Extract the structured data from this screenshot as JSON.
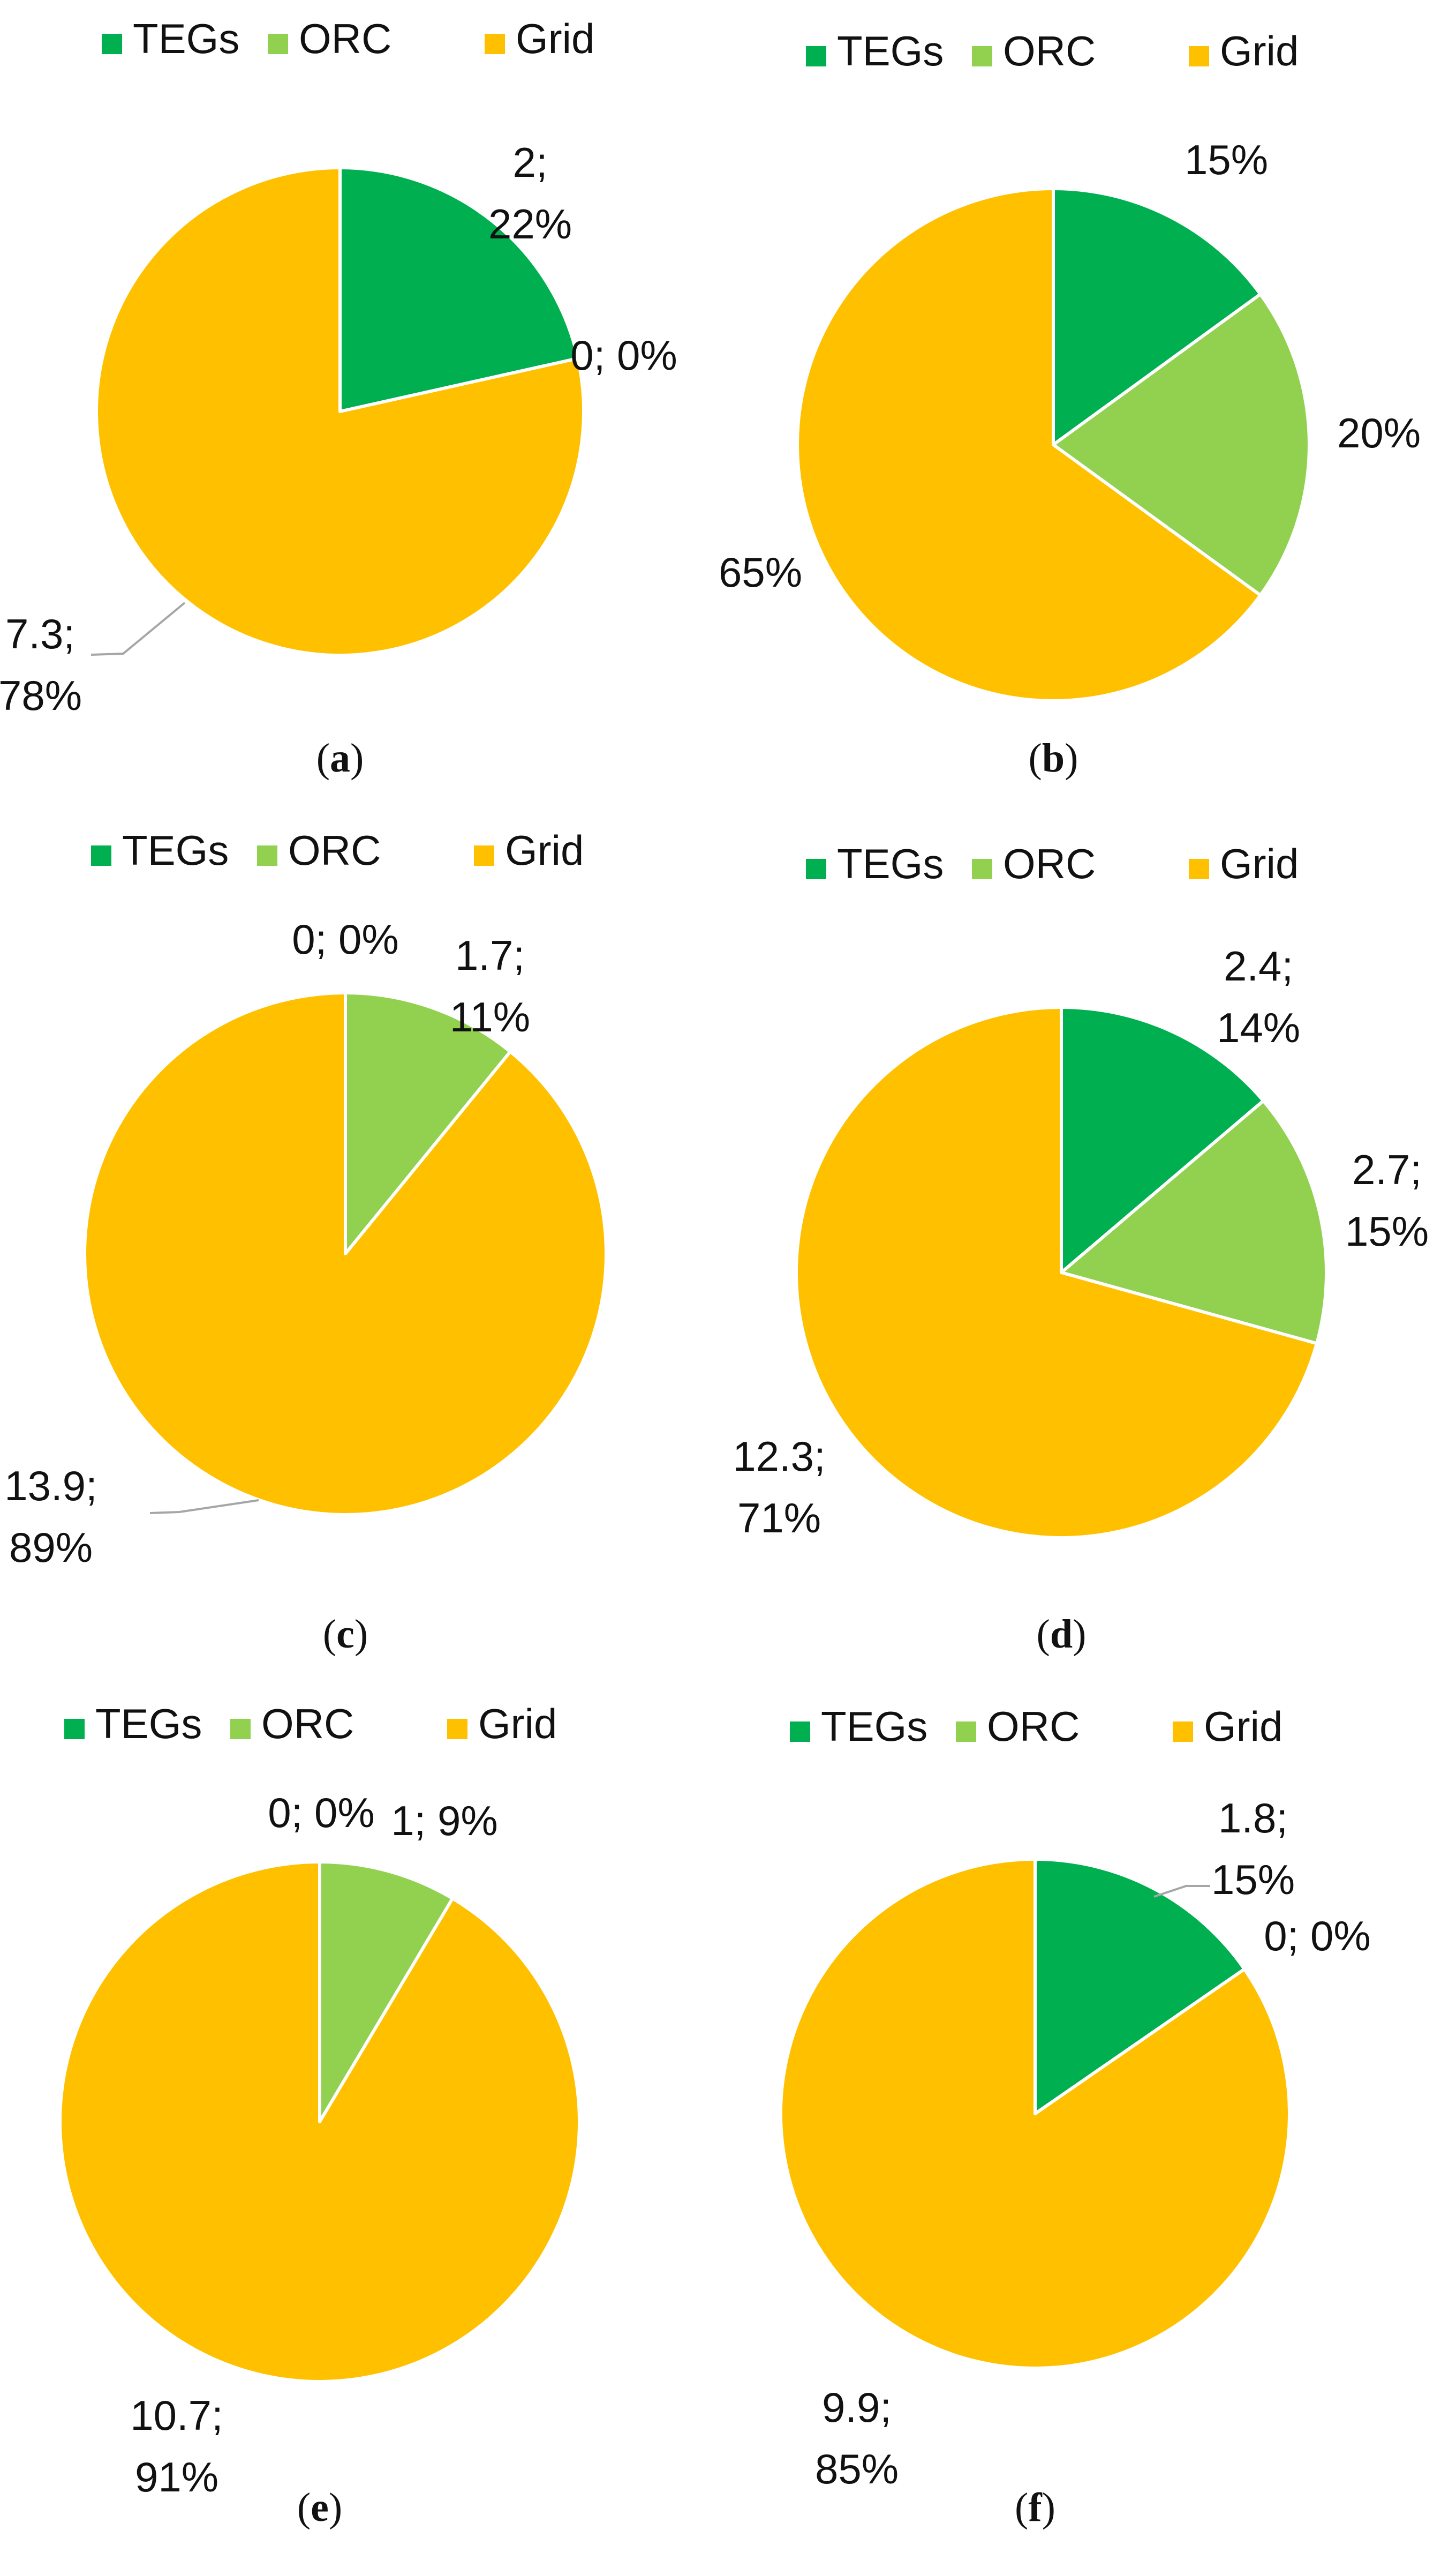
{
  "legend": [
    {
      "name": "TEGs",
      "color": "#00b050"
    },
    {
      "name": "ORC",
      "color": "#92d050"
    },
    {
      "name": "Grid",
      "color": "#ffc000"
    }
  ],
  "chart_data": [
    {
      "type": "pie",
      "caption": "a",
      "slices": [
        {
          "name": "TEGs",
          "value": 2,
          "percent": 22,
          "label": [
            "2;",
            "22%"
          ]
        },
        {
          "name": "ORC",
          "value": 0,
          "percent": 0,
          "label": [
            "0; 0%"
          ]
        },
        {
          "name": "Grid",
          "value": 7.3,
          "percent": 78,
          "label": [
            "7.3;",
            "78%"
          ]
        }
      ]
    },
    {
      "type": "pie",
      "caption": "b",
      "slices": [
        {
          "name": "TEGs",
          "value": 15,
          "percent": 15,
          "label": [
            "15%"
          ]
        },
        {
          "name": "ORC",
          "value": 20,
          "percent": 20,
          "label": [
            "20%"
          ]
        },
        {
          "name": "Grid",
          "value": 65,
          "percent": 65,
          "label": [
            "65%"
          ]
        }
      ]
    },
    {
      "type": "pie",
      "caption": "c",
      "slices": [
        {
          "name": "TEGs",
          "value": 0,
          "percent": 0,
          "label": [
            "0; 0%"
          ]
        },
        {
          "name": "ORC",
          "value": 1.7,
          "percent": 11,
          "label": [
            "1.7;",
            "11%"
          ]
        },
        {
          "name": "Grid",
          "value": 13.9,
          "percent": 89,
          "label": [
            "13.9;",
            "89%"
          ]
        }
      ]
    },
    {
      "type": "pie",
      "caption": "d",
      "slices": [
        {
          "name": "TEGs",
          "value": 2.4,
          "percent": 14,
          "label": [
            "2.4;",
            "14%"
          ]
        },
        {
          "name": "ORC",
          "value": 2.7,
          "percent": 15,
          "label": [
            "2.7;",
            "15%"
          ]
        },
        {
          "name": "Grid",
          "value": 12.3,
          "percent": 71,
          "label": [
            "12.3;",
            "71%"
          ]
        }
      ]
    },
    {
      "type": "pie",
      "caption": "e",
      "slices": [
        {
          "name": "TEGs",
          "value": 0,
          "percent": 0,
          "label": [
            "0; 0%"
          ]
        },
        {
          "name": "ORC",
          "value": 1,
          "percent": 9,
          "label": [
            "1; 9%"
          ]
        },
        {
          "name": "Grid",
          "value": 10.7,
          "percent": 91,
          "label": [
            "10.7;",
            "91%"
          ]
        }
      ]
    },
    {
      "type": "pie",
      "caption": "f",
      "slices": [
        {
          "name": "TEGs",
          "value": 1.8,
          "percent": 15,
          "label": [
            "1.8;",
            "15%"
          ]
        },
        {
          "name": "ORC",
          "value": 0,
          "percent": 0,
          "label": [
            "0; 0%"
          ]
        },
        {
          "name": "Grid",
          "value": 9.9,
          "percent": 85,
          "label": [
            "9.9;",
            "85%"
          ]
        }
      ]
    }
  ]
}
